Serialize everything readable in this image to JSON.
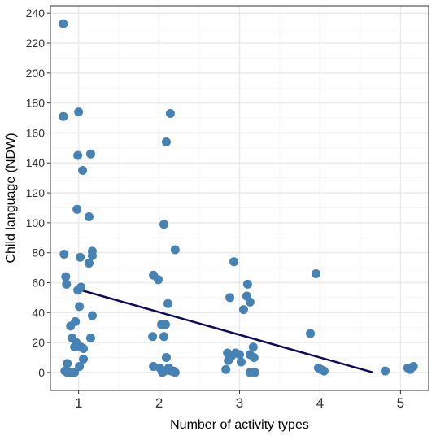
{
  "chart_data": {
    "type": "scatter",
    "title": "",
    "xlabel": "Number of activity types",
    "ylabel": "Child language (NDW)",
    "xlim": [
      0.65,
      5.35
    ],
    "ylim": [
      -12,
      245
    ],
    "x_ticks": [
      1,
      2,
      3,
      4,
      5
    ],
    "x_tick_labels": [
      "1",
      "2",
      "3",
      "4",
      "5"
    ],
    "y_ticks": [
      0,
      20,
      40,
      60,
      80,
      100,
      120,
      140,
      160,
      180,
      200,
      220,
      240
    ],
    "y_tick_labels": [
      "0",
      "20",
      "40",
      "60",
      "80",
      "100",
      "120",
      "140",
      "160",
      "180",
      "200",
      "220",
      "240"
    ],
    "grid": true,
    "colors": {
      "points": "#4682B4",
      "trend_line": "#0D0A5C",
      "grid_major": "#EBEBEB",
      "grid_minor": "#F5F5F5",
      "panel_border": "#333333"
    },
    "points": [
      {
        "x": 0.81,
        "y": 233
      },
      {
        "x": 0.81,
        "y": 171
      },
      {
        "x": 1.0,
        "y": 174
      },
      {
        "x": 0.99,
        "y": 145
      },
      {
        "x": 1.15,
        "y": 146
      },
      {
        "x": 1.05,
        "y": 135
      },
      {
        "x": 0.98,
        "y": 109
      },
      {
        "x": 1.13,
        "y": 104
      },
      {
        "x": 0.82,
        "y": 79
      },
      {
        "x": 1.17,
        "y": 81
      },
      {
        "x": 1.17,
        "y": 78
      },
      {
        "x": 1.02,
        "y": 77
      },
      {
        "x": 1.13,
        "y": 73
      },
      {
        "x": 0.84,
        "y": 64
      },
      {
        "x": 0.85,
        "y": 59
      },
      {
        "x": 1.03,
        "y": 57
      },
      {
        "x": 0.99,
        "y": 55
      },
      {
        "x": 1.01,
        "y": 44
      },
      {
        "x": 1.17,
        "y": 38
      },
      {
        "x": 0.96,
        "y": 34
      },
      {
        "x": 0.9,
        "y": 31
      },
      {
        "x": 0.92,
        "y": 23
      },
      {
        "x": 1.15,
        "y": 23
      },
      {
        "x": 0.97,
        "y": 20
      },
      {
        "x": 0.95,
        "y": 17
      },
      {
        "x": 1.03,
        "y": 17
      },
      {
        "x": 1.06,
        "y": 16
      },
      {
        "x": 1.06,
        "y": 9
      },
      {
        "x": 0.86,
        "y": 6
      },
      {
        "x": 1.01,
        "y": 4
      },
      {
        "x": 0.83,
        "y": 1
      },
      {
        "x": 0.86,
        "y": 0
      },
      {
        "x": 0.91,
        "y": 0
      },
      {
        "x": 0.95,
        "y": 0
      },
      {
        "x": 2.14,
        "y": 173
      },
      {
        "x": 2.09,
        "y": 154
      },
      {
        "x": 2.06,
        "y": 99
      },
      {
        "x": 2.2,
        "y": 82
      },
      {
        "x": 1.93,
        "y": 65
      },
      {
        "x": 1.99,
        "y": 62
      },
      {
        "x": 2.11,
        "y": 46
      },
      {
        "x": 2.03,
        "y": 32
      },
      {
        "x": 2.08,
        "y": 32
      },
      {
        "x": 1.92,
        "y": 24
      },
      {
        "x": 2.06,
        "y": 24
      },
      {
        "x": 2.09,
        "y": 10
      },
      {
        "x": 1.93,
        "y": 4
      },
      {
        "x": 2.01,
        "y": 3
      },
      {
        "x": 2.07,
        "y": 1
      },
      {
        "x": 2.12,
        "y": 3
      },
      {
        "x": 2.15,
        "y": 1
      },
      {
        "x": 2.18,
        "y": 1
      },
      {
        "x": 2.2,
        "y": 0
      },
      {
        "x": 2.04,
        "y": 0
      },
      {
        "x": 2.93,
        "y": 74
      },
      {
        "x": 3.1,
        "y": 59
      },
      {
        "x": 3.09,
        "y": 51
      },
      {
        "x": 2.88,
        "y": 50
      },
      {
        "x": 3.13,
        "y": 47
      },
      {
        "x": 3.05,
        "y": 42
      },
      {
        "x": 3.17,
        "y": 17
      },
      {
        "x": 2.85,
        "y": 13
      },
      {
        "x": 2.95,
        "y": 13
      },
      {
        "x": 3.0,
        "y": 12
      },
      {
        "x": 3.13,
        "y": 12
      },
      {
        "x": 2.9,
        "y": 11
      },
      {
        "x": 3.18,
        "y": 10
      },
      {
        "x": 2.86,
        "y": 8
      },
      {
        "x": 3.02,
        "y": 7
      },
      {
        "x": 2.83,
        "y": 2
      },
      {
        "x": 3.13,
        "y": 0
      },
      {
        "x": 3.19,
        "y": 0
      },
      {
        "x": 3.95,
        "y": 66
      },
      {
        "x": 3.88,
        "y": 26
      },
      {
        "x": 3.98,
        "y": 3
      },
      {
        "x": 4.01,
        "y": 2
      },
      {
        "x": 4.05,
        "y": 1
      },
      {
        "x": 4.81,
        "y": 1
      },
      {
        "x": 5.09,
        "y": 3
      },
      {
        "x": 5.12,
        "y": 2
      },
      {
        "x": 5.16,
        "y": 4
      }
    ],
    "trend_line": {
      "x": [
        1.03,
        4.66
      ],
      "y": [
        55,
        0
      ]
    }
  }
}
